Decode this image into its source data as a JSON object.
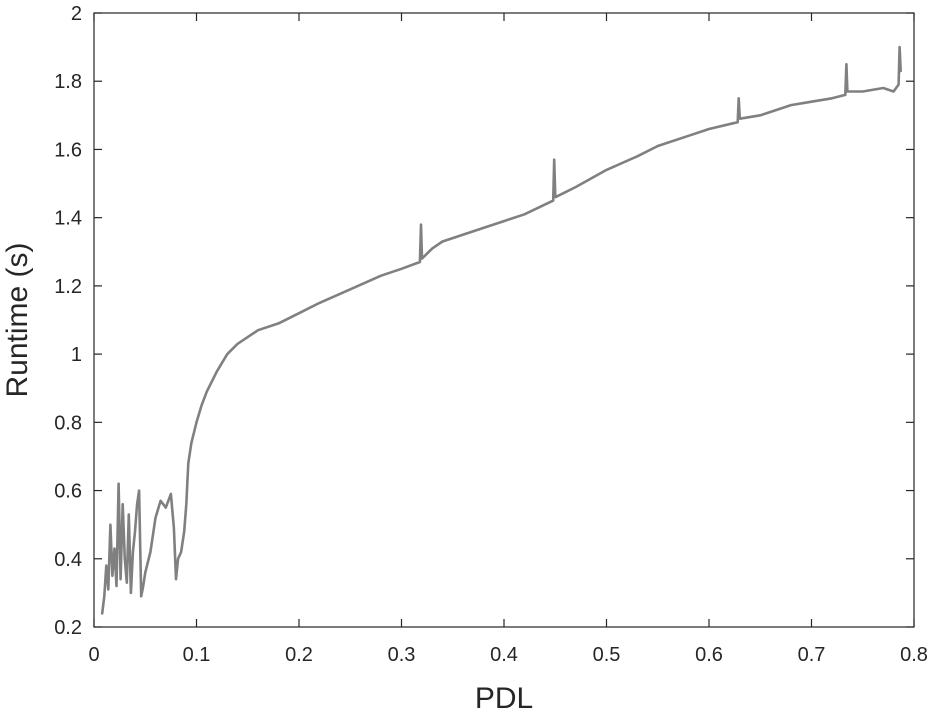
{
  "chart_data": {
    "type": "line",
    "title": "",
    "xlabel": "PDL",
    "ylabel": "Runtime (s)",
    "xlim": [
      0,
      0.8
    ],
    "ylim": [
      0.2,
      2
    ],
    "xticks": [
      0,
      0.1,
      0.2,
      0.3,
      0.4,
      0.5,
      0.6,
      0.7,
      0.8
    ],
    "xtick_labels": [
      "0",
      "0.1",
      "0.2",
      "0.3",
      "0.4",
      "0.5",
      "0.6",
      "0.7",
      "0.8"
    ],
    "yticks": [
      0.2,
      0.4,
      0.6,
      0.8,
      1.0,
      1.2,
      1.4,
      1.6,
      1.8,
      2.0
    ],
    "ytick_labels": [
      "0.2",
      "0.4",
      "0.6",
      "0.8",
      "1",
      "1.2",
      "1.4",
      "1.6",
      "1.8",
      "2"
    ],
    "grid": false,
    "legend": "none",
    "series": [
      {
        "color": "#808080",
        "x": [
          0.008,
          0.01,
          0.012,
          0.014,
          0.016,
          0.018,
          0.02,
          0.022,
          0.024,
          0.026,
          0.028,
          0.03,
          0.032,
          0.034,
          0.036,
          0.038,
          0.04,
          0.042,
          0.044,
          0.046,
          0.048,
          0.05,
          0.055,
          0.06,
          0.065,
          0.07,
          0.075,
          0.078,
          0.08,
          0.082,
          0.085,
          0.088,
          0.09,
          0.092,
          0.095,
          0.1,
          0.105,
          0.11,
          0.12,
          0.13,
          0.14,
          0.15,
          0.16,
          0.18,
          0.2,
          0.22,
          0.25,
          0.28,
          0.3,
          0.318,
          0.319,
          0.32,
          0.33,
          0.34,
          0.35,
          0.38,
          0.4,
          0.42,
          0.448,
          0.449,
          0.45,
          0.47,
          0.5,
          0.53,
          0.55,
          0.58,
          0.6,
          0.628,
          0.629,
          0.63,
          0.65,
          0.68,
          0.7,
          0.72,
          0.733,
          0.734,
          0.735,
          0.75,
          0.77,
          0.78,
          0.785,
          0.786,
          0.787
        ],
        "y": [
          0.24,
          0.29,
          0.38,
          0.31,
          0.5,
          0.35,
          0.43,
          0.32,
          0.62,
          0.34,
          0.56,
          0.4,
          0.33,
          0.53,
          0.3,
          0.42,
          0.48,
          0.56,
          0.6,
          0.29,
          0.32,
          0.36,
          0.42,
          0.52,
          0.57,
          0.55,
          0.59,
          0.49,
          0.34,
          0.4,
          0.42,
          0.48,
          0.56,
          0.68,
          0.74,
          0.8,
          0.85,
          0.89,
          0.95,
          1.0,
          1.03,
          1.05,
          1.07,
          1.09,
          1.12,
          1.15,
          1.19,
          1.23,
          1.25,
          1.27,
          1.38,
          1.28,
          1.31,
          1.33,
          1.34,
          1.37,
          1.39,
          1.41,
          1.45,
          1.57,
          1.46,
          1.49,
          1.54,
          1.58,
          1.61,
          1.64,
          1.66,
          1.68,
          1.75,
          1.69,
          1.7,
          1.73,
          1.74,
          1.75,
          1.76,
          1.85,
          1.77,
          1.77,
          1.78,
          1.77,
          1.79,
          1.9,
          1.83
        ]
      }
    ]
  }
}
